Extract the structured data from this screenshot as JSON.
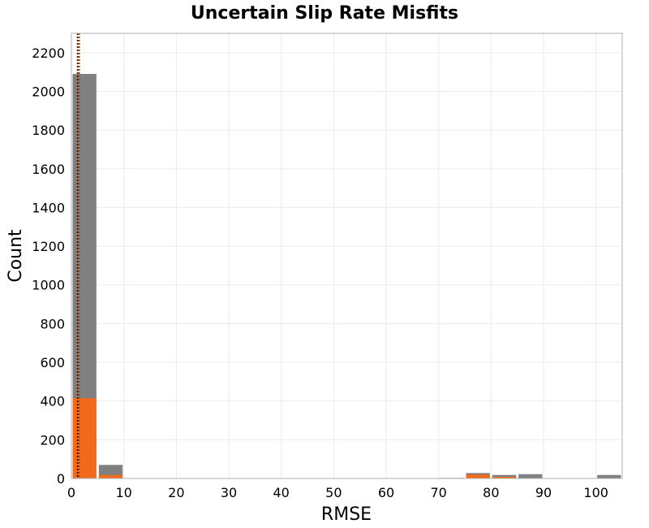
{
  "chart_data": {
    "type": "bar",
    "title": "Uncertain Slip Rate Misfits",
    "xlabel": "RMSE",
    "ylabel": "Count",
    "xlim": [
      0,
      105
    ],
    "ylim": [
      0,
      2300
    ],
    "x_ticks": [
      0,
      10,
      20,
      30,
      40,
      50,
      60,
      70,
      80,
      90,
      100
    ],
    "y_ticks": [
      0,
      200,
      400,
      600,
      800,
      1000,
      1200,
      1400,
      1600,
      1800,
      2000,
      2200
    ],
    "grid": true,
    "bin_width": 5,
    "series": [
      {
        "color": "#808080",
        "bins": [
          {
            "x0": 0,
            "x1": 5,
            "value": 2090
          },
          {
            "x0": 5,
            "x1": 10,
            "value": 70
          },
          {
            "x0": 70,
            "x1": 75,
            "value": 3
          },
          {
            "x0": 75,
            "x1": 80,
            "value": 28
          },
          {
            "x0": 80,
            "x1": 85,
            "value": 18
          },
          {
            "x0": 85,
            "x1": 90,
            "value": 22
          },
          {
            "x0": 100,
            "x1": 105,
            "value": 18
          }
        ]
      },
      {
        "color": "#f26b1d",
        "bins": [
          {
            "x0": 0,
            "x1": 5,
            "value": 415
          },
          {
            "x0": 5,
            "x1": 10,
            "value": 18
          },
          {
            "x0": 75,
            "x1": 80,
            "value": 20
          },
          {
            "x0": 80,
            "x1": 85,
            "value": 8
          }
        ]
      }
    ],
    "reference_lines": [
      {
        "x": 1.2,
        "color": "#3a1a0a",
        "style": "dotted"
      },
      {
        "x": 1.5,
        "color": "#b84a10",
        "style": "dotted"
      }
    ]
  }
}
